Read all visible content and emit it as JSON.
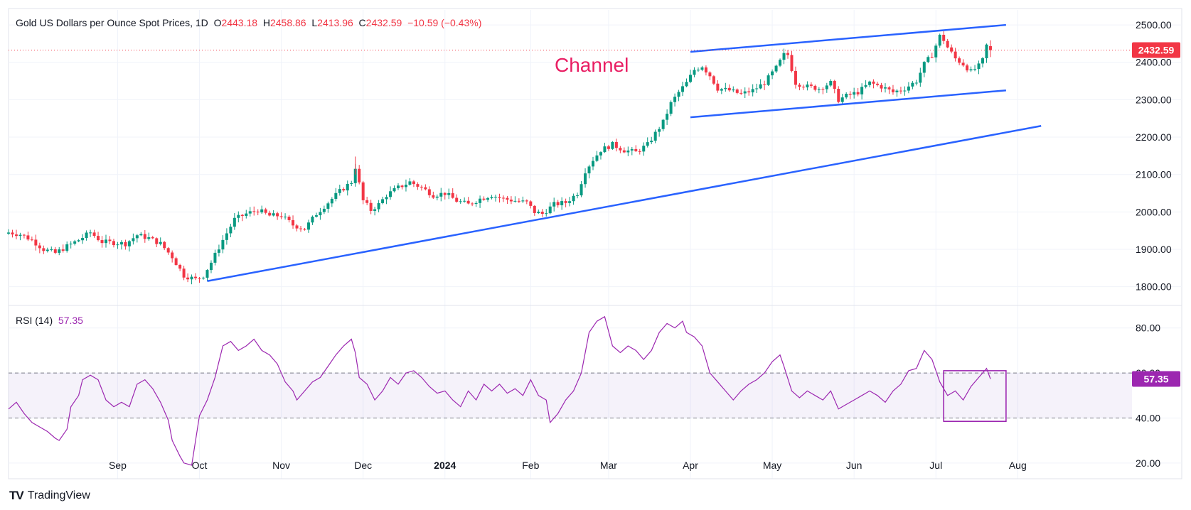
{
  "legend": {
    "symbol": "Gold US Dollars per Ounce Spot Prices, 1D",
    "o_label": "O",
    "o": "2443.18",
    "h_label": "H",
    "h": "2458.86",
    "l_label": "L",
    "l": "2413.96",
    "c_label": "C",
    "c": "2432.59",
    "change": "−10.59 (−0.43%)"
  },
  "annotation": "Channel",
  "last_price_label": "2432.59",
  "rsi_legend": {
    "name": "RSI (14)",
    "value": "57.35"
  },
  "rsi_value_label": "57.35",
  "brand": {
    "name": "TradingView",
    "logo": "TV"
  },
  "colors": {
    "up": "#089981",
    "down": "#f23645",
    "trendline": "#2962ff",
    "rsi": "#9c27b0",
    "annotation": "#e91e63"
  },
  "chart_data": [
    {
      "type": "candlestick",
      "title": "Gold US Dollars per Ounce Spot Prices, 1D",
      "ylim": [
        1750,
        2540
      ],
      "y_ticks": [
        "1800.00",
        "1900.00",
        "2000.00",
        "2100.00",
        "2200.00",
        "2300.00",
        "2400.00",
        "2500.00"
      ],
      "x_ticks": [
        "Sep",
        "Oct",
        "Nov",
        "Dec",
        "2024",
        "Feb",
        "Mar",
        "Apr",
        "May",
        "Jun",
        "Jul",
        "Aug"
      ],
      "x_tick_days": [
        28,
        49,
        70,
        91,
        112,
        134,
        154,
        175,
        196,
        217,
        238,
        259
      ],
      "last_price": 2432.59,
      "trendlines": [
        {
          "name": "channel-upper",
          "points": [
            [
              175,
              2428
            ],
            [
              256,
              2500
            ]
          ]
        },
        {
          "name": "channel-lower",
          "points": [
            [
              175,
              2253
            ],
            [
              256,
              2325
            ]
          ]
        },
        {
          "name": "support",
          "points": [
            [
              51,
              1815
            ],
            [
              265,
              2230
            ]
          ]
        }
      ],
      "anchors": [
        [
          0,
          1945
        ],
        [
          3,
          1940
        ],
        [
          6,
          1925
        ],
        [
          9,
          1900
        ],
        [
          12,
          1890
        ],
        [
          15,
          1908
        ],
        [
          18,
          1925
        ],
        [
          21,
          1945
        ],
        [
          24,
          1920
        ],
        [
          27,
          1918
        ],
        [
          30,
          1915
        ],
        [
          33,
          1938
        ],
        [
          36,
          1930
        ],
        [
          39,
          1915
        ],
        [
          42,
          1880
        ],
        [
          45,
          1830
        ],
        [
          48,
          1820
        ],
        [
          50,
          1830
        ],
        [
          52,
          1865
        ],
        [
          55,
          1925
        ],
        [
          58,
          1980
        ],
        [
          61,
          1995
        ],
        [
          64,
          2005
        ],
        [
          67,
          1990
        ],
        [
          70,
          1990
        ],
        [
          73,
          1965
        ],
        [
          76,
          1955
        ],
        [
          79,
          1995
        ],
        [
          82,
          2025
        ],
        [
          85,
          2055
        ],
        [
          88,
          2080
        ],
        [
          89,
          2120
        ],
        [
          91,
          2030
        ],
        [
          93,
          2005
        ],
        [
          95,
          2020
        ],
        [
          97,
          2045
        ],
        [
          100,
          2065
        ],
        [
          103,
          2080
        ],
        [
          106,
          2065
        ],
        [
          109,
          2045
        ],
        [
          112,
          2050
        ],
        [
          115,
          2030
        ],
        [
          118,
          2020
        ],
        [
          121,
          2035
        ],
        [
          124,
          2045
        ],
        [
          127,
          2035
        ],
        [
          130,
          2030
        ],
        [
          133,
          2025
        ],
        [
          135,
          2000
        ],
        [
          137,
          1995
        ],
        [
          140,
          2020
        ],
        [
          143,
          2025
        ],
        [
          146,
          2050
        ],
        [
          148,
          2110
        ],
        [
          150,
          2140
        ],
        [
          152,
          2165
        ],
        [
          155,
          2180
        ],
        [
          158,
          2165
        ],
        [
          161,
          2160
        ],
        [
          164,
          2180
        ],
        [
          166,
          2210
        ],
        [
          168,
          2240
        ],
        [
          170,
          2290
        ],
        [
          172,
          2320
        ],
        [
          174,
          2345
        ],
        [
          176,
          2380
        ],
        [
          178,
          2390
        ],
        [
          180,
          2365
        ],
        [
          182,
          2330
        ],
        [
          185,
          2325
        ],
        [
          188,
          2315
        ],
        [
          191,
          2325
        ],
        [
          194,
          2345
        ],
        [
          197,
          2385
        ],
        [
          199,
          2420
        ],
        [
          200,
          2420
        ],
        [
          202,
          2345
        ],
        [
          205,
          2335
        ],
        [
          208,
          2330
        ],
        [
          211,
          2345
        ],
        [
          213,
          2300
        ],
        [
          215,
          2310
        ],
        [
          218,
          2320
        ],
        [
          221,
          2345
        ],
        [
          224,
          2335
        ],
        [
          227,
          2320
        ],
        [
          230,
          2330
        ],
        [
          233,
          2350
        ],
        [
          235,
          2395
        ],
        [
          237,
          2420
        ],
        [
          239,
          2470
        ],
        [
          240,
          2460
        ],
        [
          241,
          2440
        ],
        [
          243,
          2410
        ],
        [
          245,
          2395
        ],
        [
          247,
          2375
        ],
        [
          249,
          2390
        ],
        [
          250,
          2405
        ],
        [
          251,
          2445
        ],
        [
          252,
          2432.59
        ]
      ]
    },
    {
      "type": "line",
      "title": "RSI (14)",
      "ylim": [
        13,
        90
      ],
      "y_ticks": [
        "20.00",
        "40.00",
        "60.00",
        "80.00"
      ],
      "band": [
        40,
        60
      ],
      "series": [
        {
          "values": [
            [
              0,
              44
            ],
            [
              2,
              47
            ],
            [
              4,
              42
            ],
            [
              6,
              38
            ],
            [
              8,
              36
            ],
            [
              10,
              34
            ],
            [
              12,
              31
            ],
            [
              13,
              30
            ],
            [
              15,
              35
            ],
            [
              16,
              45
            ],
            [
              18,
              50
            ],
            [
              19,
              57
            ],
            [
              21,
              59
            ],
            [
              23,
              57
            ],
            [
              25,
              48
            ],
            [
              27,
              45
            ],
            [
              29,
              47
            ],
            [
              31,
              45
            ],
            [
              33,
              55
            ],
            [
              35,
              57
            ],
            [
              37,
              53
            ],
            [
              39,
              47
            ],
            [
              41,
              39
            ],
            [
              42,
              30
            ],
            [
              44,
              23
            ],
            [
              45,
              20
            ],
            [
              47,
              19
            ],
            [
              49,
              41
            ],
            [
              51,
              48
            ],
            [
              53,
              58
            ],
            [
              55,
              72
            ],
            [
              57,
              74
            ],
            [
              59,
              70
            ],
            [
              61,
              72
            ],
            [
              63,
              75
            ],
            [
              65,
              70
            ],
            [
              67,
              68
            ],
            [
              69,
              64
            ],
            [
              71,
              56
            ],
            [
              73,
              52
            ],
            [
              74,
              48
            ],
            [
              76,
              52
            ],
            [
              78,
              56
            ],
            [
              80,
              58
            ],
            [
              82,
              63
            ],
            [
              84,
              68
            ],
            [
              86,
              72
            ],
            [
              88,
              75
            ],
            [
              89,
              69
            ],
            [
              90,
              58
            ],
            [
              92,
              55
            ],
            [
              94,
              48
            ],
            [
              96,
              52
            ],
            [
              98,
              58
            ],
            [
              100,
              55
            ],
            [
              102,
              60
            ],
            [
              104,
              61
            ],
            [
              106,
              58
            ],
            [
              108,
              54
            ],
            [
              110,
              51
            ],
            [
              112,
              52
            ],
            [
              114,
              48
            ],
            [
              116,
              45
            ],
            [
              118,
              52
            ],
            [
              120,
              48
            ],
            [
              122,
              55
            ],
            [
              124,
              52
            ],
            [
              126,
              55
            ],
            [
              128,
              51
            ],
            [
              130,
              53
            ],
            [
              132,
              50
            ],
            [
              134,
              57
            ],
            [
              136,
              50
            ],
            [
              138,
              48
            ],
            [
              139,
              38
            ],
            [
              141,
              42
            ],
            [
              143,
              48
            ],
            [
              145,
              52
            ],
            [
              147,
              60
            ],
            [
              149,
              78
            ],
            [
              151,
              83
            ],
            [
              153,
              85
            ],
            [
              155,
              72
            ],
            [
              157,
              69
            ],
            [
              159,
              72
            ],
            [
              161,
              70
            ],
            [
              163,
              66
            ],
            [
              165,
              70
            ],
            [
              167,
              78
            ],
            [
              169,
              82
            ],
            [
              171,
              80
            ],
            [
              173,
              83
            ],
            [
              174,
              78
            ],
            [
              176,
              76
            ],
            [
              178,
              72
            ],
            [
              180,
              60
            ],
            [
              182,
              56
            ],
            [
              184,
              52
            ],
            [
              186,
              48
            ],
            [
              188,
              52
            ],
            [
              190,
              55
            ],
            [
              192,
              57
            ],
            [
              194,
              60
            ],
            [
              196,
              65
            ],
            [
              198,
              68
            ],
            [
              199,
              63
            ],
            [
              201,
              52
            ],
            [
              203,
              49
            ],
            [
              205,
              52
            ],
            [
              207,
              50
            ],
            [
              209,
              48
            ],
            [
              211,
              52
            ],
            [
              213,
              44
            ],
            [
              215,
              46
            ],
            [
              217,
              48
            ],
            [
              219,
              50
            ],
            [
              221,
              52
            ],
            [
              223,
              50
            ],
            [
              225,
              47
            ],
            [
              227,
              52
            ],
            [
              229,
              55
            ],
            [
              231,
              61
            ],
            [
              233,
              62
            ],
            [
              235,
              70
            ],
            [
              237,
              66
            ],
            [
              239,
              56
            ],
            [
              241,
              50
            ],
            [
              243,
              52
            ],
            [
              245,
              48
            ],
            [
              247,
              54
            ],
            [
              249,
              58
            ],
            [
              251,
              62
            ],
            [
              252,
              57.35
            ]
          ]
        }
      ]
    }
  ]
}
